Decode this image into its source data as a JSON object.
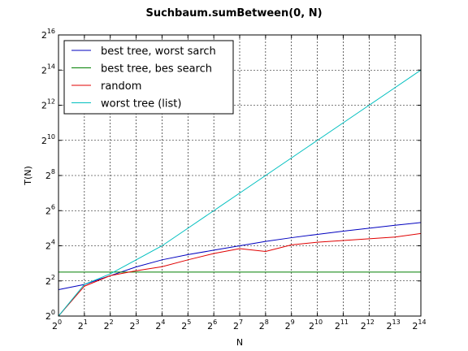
{
  "chart_data": {
    "type": "line",
    "title": "Suchbaum.sumBetween(0, N)",
    "xlabel": "N",
    "ylabel": "T(N)",
    "x_scale": "log2",
    "y_scale": "log2",
    "x": [
      1,
      2,
      4,
      8,
      16,
      32,
      64,
      128,
      256,
      512,
      1024,
      2048,
      4096,
      8192,
      16384
    ],
    "xlim": [
      1,
      16384
    ],
    "ylim": [
      1,
      65536
    ],
    "x_tick_exponents": [
      "0",
      "1",
      "2",
      "3",
      "4",
      "5",
      "6",
      "7",
      "8",
      "9",
      "10",
      "11",
      "12",
      "13",
      "14"
    ],
    "y_tick_exponents": [
      "0",
      "2",
      "4",
      "6",
      "8",
      "10",
      "12",
      "14",
      "16"
    ],
    "tick_base": "2",
    "grid": true,
    "legend_position": "top-left",
    "series": [
      {
        "name": "best tree, worst sarch",
        "color": "#0000bf",
        "values": [
          2.83,
          3.48,
          4.92,
          6.96,
          9.19,
          11.3,
          13.45,
          16.0,
          19.0,
          22.0,
          25.1,
          28.5,
          32.0,
          36.0,
          40.0
        ]
      },
      {
        "name": "best tree, bes search",
        "color": "#007f00",
        "values": [
          5.66,
          5.66,
          5.66,
          5.66,
          5.66,
          5.66,
          5.66,
          5.66,
          5.66,
          5.66,
          5.66,
          5.66,
          5.66,
          5.66,
          5.66
        ]
      },
      {
        "name": "random",
        "color": "#e00000",
        "values": [
          1.0,
          3.25,
          4.92,
          5.98,
          7.0,
          9.19,
          11.8,
          14.3,
          12.8,
          16.6,
          18.4,
          19.7,
          21.1,
          22.6,
          26.0
        ]
      },
      {
        "name": "worst tree (list)",
        "color": "#00bfbf",
        "values": [
          1.0,
          3.48,
          5.28,
          9.19,
          16.0,
          32.0,
          64.0,
          128.0,
          256.0,
          512.0,
          1024.0,
          2048.0,
          4096.0,
          8192.0,
          16384.0
        ]
      }
    ]
  }
}
